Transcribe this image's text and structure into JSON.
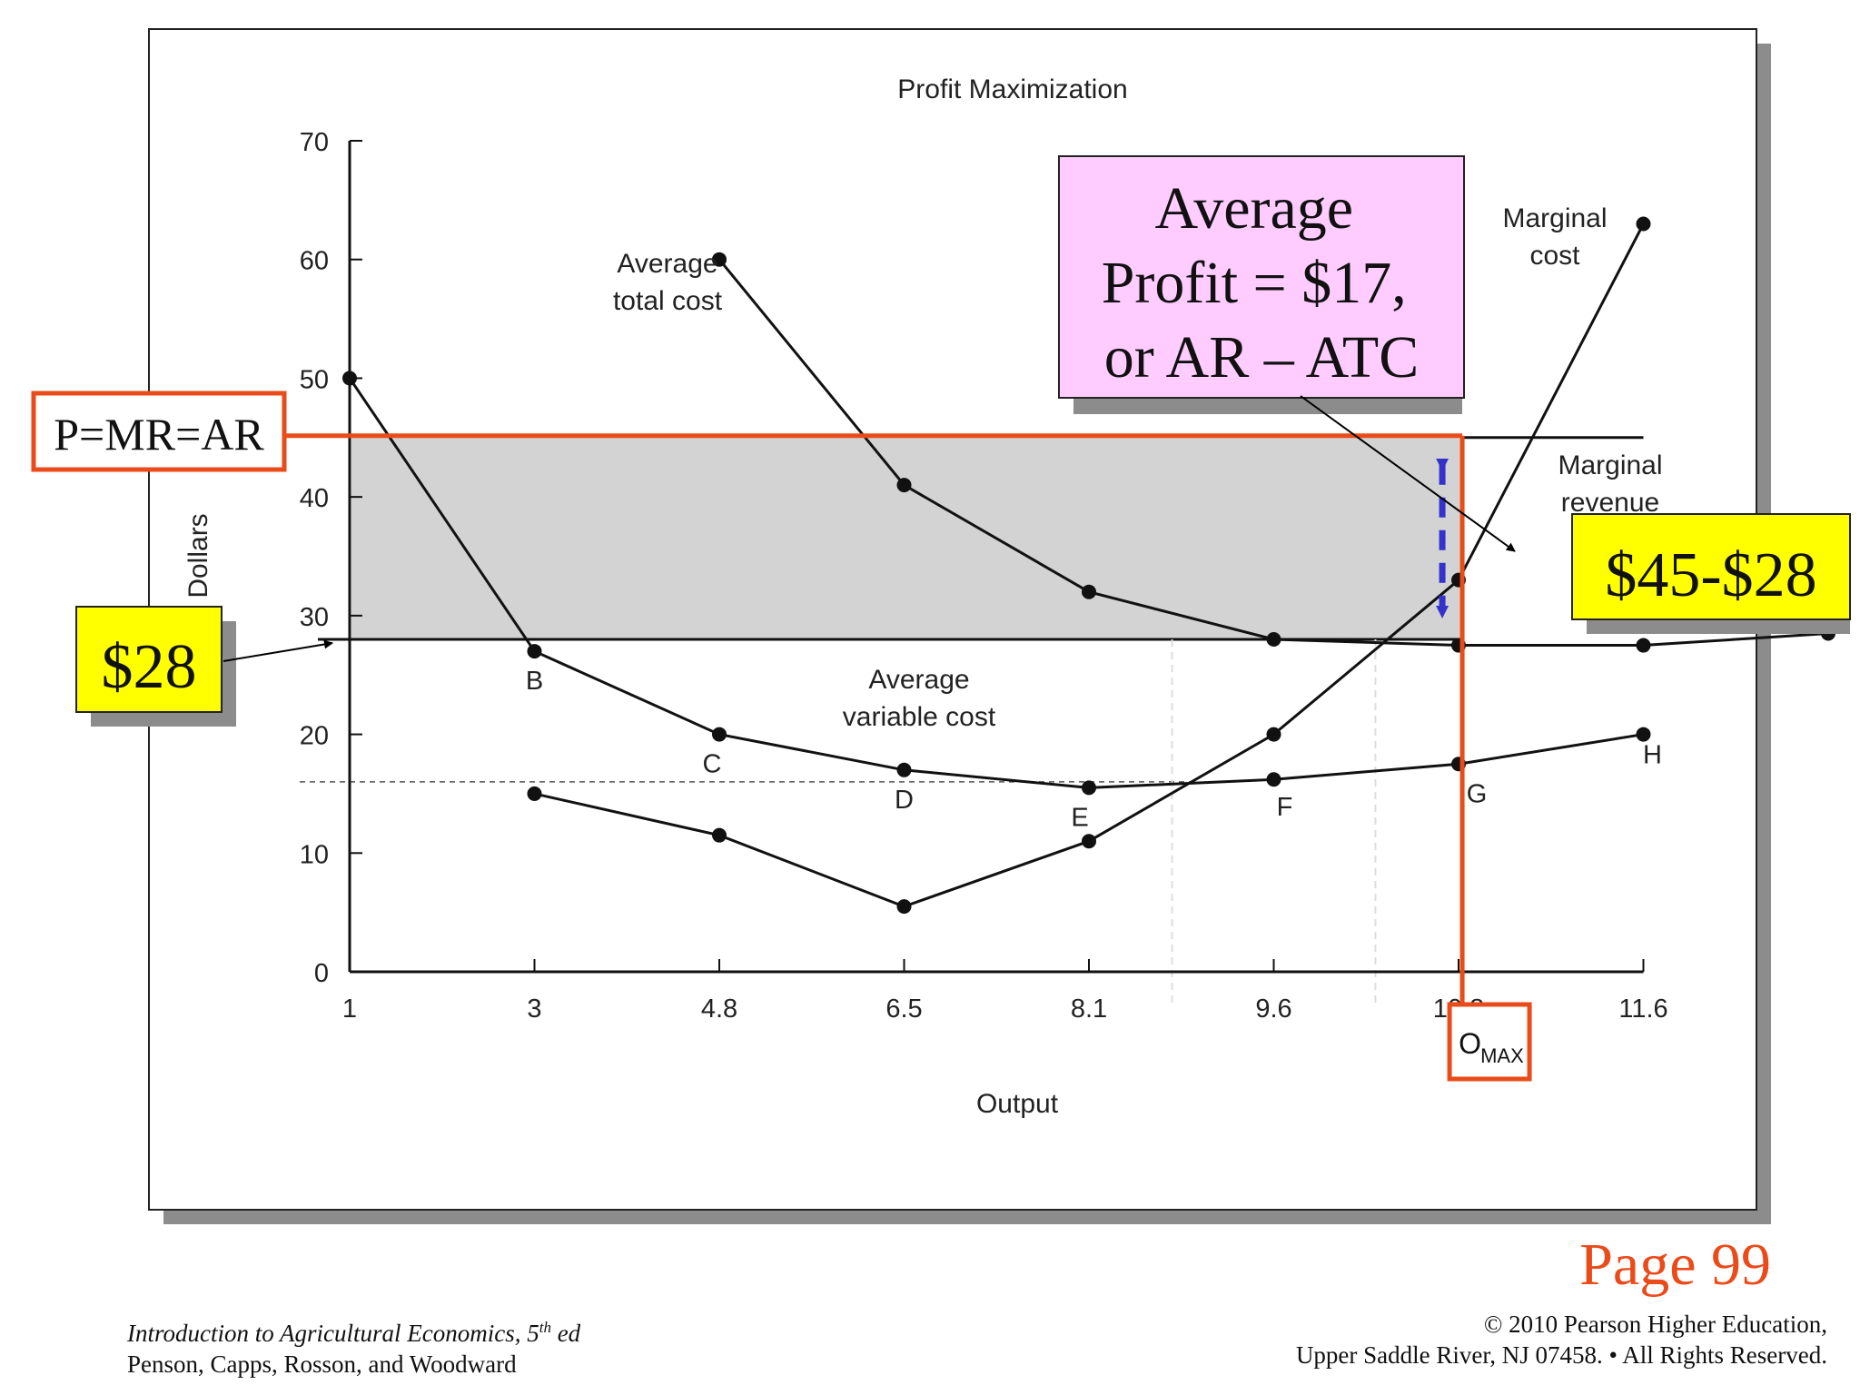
{
  "chart_data": {
    "type": "line",
    "title": "Profit Maximization",
    "xlabel": "Output",
    "ylabel": "Dollars",
    "x_ticks": [
      "1",
      "3",
      "4.8",
      "6.5",
      "8.1",
      "9.6",
      "10.8",
      "11.6"
    ],
    "y_ticks": [
      "0",
      "10",
      "20",
      "30",
      "40",
      "50",
      "60",
      "70"
    ],
    "ylim": [
      0,
      70
    ],
    "grid": false,
    "series": [
      {
        "name": "Average total cost",
        "points": [
          [
            2,
            60
          ],
          [
            3,
            41
          ],
          [
            4,
            32
          ],
          [
            5,
            28
          ],
          [
            6,
            27.5
          ],
          [
            7,
            27.5
          ],
          [
            8,
            28.5
          ]
        ]
      },
      {
        "name": "Average variable cost",
        "points": [
          [
            0,
            50
          ],
          [
            1,
            27
          ],
          [
            2,
            20
          ],
          [
            3,
            17
          ],
          [
            4,
            15.5
          ],
          [
            5,
            16.2
          ],
          [
            6,
            17.5
          ],
          [
            7,
            20
          ]
        ]
      },
      {
        "name": "Marginal cost",
        "points": [
          [
            1,
            15
          ],
          [
            2,
            11.5
          ],
          [
            3,
            5.5
          ],
          [
            4,
            11
          ],
          [
            5,
            20
          ],
          [
            6,
            33
          ],
          [
            7,
            63
          ]
        ]
      },
      {
        "name": "Marginal revenue",
        "points": [
          [
            0,
            45
          ],
          [
            7,
            45
          ]
        ]
      }
    ],
    "point_labels": [
      "B",
      "C",
      "D",
      "E",
      "F",
      "G",
      "H"
    ],
    "price": 45,
    "atc_at_optimum": 28,
    "avc_min": 16,
    "optimum_output_index": 6.02,
    "optimum_label": "O",
    "optimum_label_sub": "MAX",
    "annotations": {
      "price_label": "P=MR=AR",
      "atc_label": "$28",
      "difference_label": "$45-$28",
      "profit_lines": [
        "Average",
        "Profit = $17,",
        "or AR – ATC"
      ]
    },
    "colors": {
      "highlight": "#ea4b1a",
      "profit_fill": "#d3d3d3",
      "yellow_box": "#ffff00",
      "pink_box": "#ffccff",
      "arrow_blue": "#3333cc"
    }
  },
  "footer": {
    "book_title": "Introduction to Agricultural Economics, 5",
    "book_title_sup": "th",
    "book_title_end": " ed",
    "authors": "Penson, Capps, Rosson, and Woodward",
    "copyright_line1": "© 2010 Pearson Higher Education,",
    "copyright_line2": "Upper Saddle River, NJ 07458. • All Rights Reserved.",
    "page": "Page 99"
  }
}
